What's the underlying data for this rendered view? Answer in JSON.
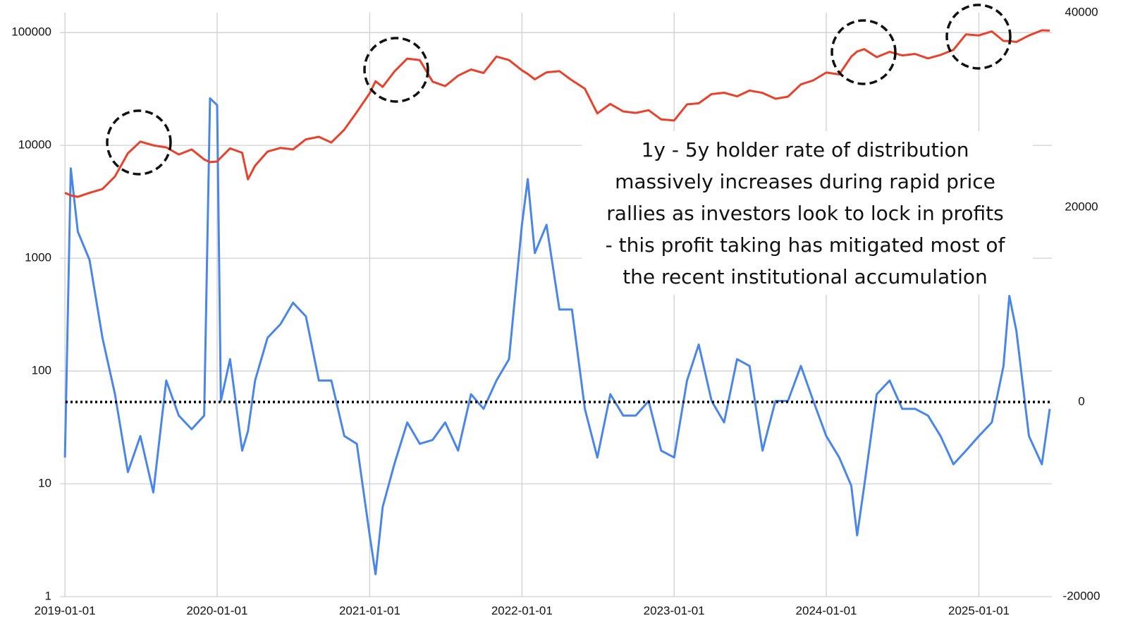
{
  "chart_data": {
    "type": "line",
    "x": [
      "2019-01-01",
      "2019-01-15",
      "2019-02-01",
      "2019-03-01",
      "2019-04-01",
      "2019-05-01",
      "2019-06-01",
      "2019-07-01",
      "2019-08-01",
      "2019-09-01",
      "2019-10-01",
      "2019-11-01",
      "2019-12-01",
      "2019-12-15",
      "2020-01-01",
      "2020-01-10",
      "2020-02-01",
      "2020-03-01",
      "2020-03-15",
      "2020-04-01",
      "2020-05-01",
      "2020-06-01",
      "2020-07-01",
      "2020-08-01",
      "2020-09-01",
      "2020-10-01",
      "2020-11-01",
      "2020-12-01",
      "2021-01-01",
      "2021-01-15",
      "2021-02-01",
      "2021-03-01",
      "2021-04-01",
      "2021-05-01",
      "2021-06-01",
      "2021-07-01",
      "2021-08-01",
      "2021-09-01",
      "2021-10-01",
      "2021-11-01",
      "2021-12-01",
      "2022-01-01",
      "2022-01-15",
      "2022-02-01",
      "2022-03-01",
      "2022-04-01",
      "2022-05-01",
      "2022-06-01",
      "2022-07-01",
      "2022-08-01",
      "2022-09-01",
      "2022-10-01",
      "2022-11-01",
      "2022-12-01",
      "2023-01-01",
      "2023-02-01",
      "2023-03-01",
      "2023-04-01",
      "2023-05-01",
      "2023-06-01",
      "2023-07-01",
      "2023-08-01",
      "2023-09-01",
      "2023-10-01",
      "2023-11-01",
      "2023-12-01",
      "2024-01-01",
      "2024-02-01",
      "2024-03-01",
      "2024-03-15",
      "2024-04-01",
      "2024-05-01",
      "2024-06-01",
      "2024-07-01",
      "2024-08-01",
      "2024-09-01",
      "2024-10-01",
      "2024-11-01",
      "2024-12-01",
      "2025-01-01",
      "2025-02-01",
      "2025-03-01",
      "2025-03-15",
      "2025-04-01",
      "2025-05-01",
      "2025-06-01",
      "2025-06-20"
    ],
    "series": [
      {
        "color": "#4a86e8",
        "axis": "y2",
        "values": [
          -5700,
          24000,
          17500,
          14600,
          6600,
          800,
          -7200,
          -3500,
          -9300,
          2200,
          -1400,
          -2800,
          -1400,
          31200,
          30500,
          100,
          4400,
          -5000,
          -3000,
          2200,
          6600,
          8000,
          10200,
          8800,
          2200,
          2200,
          -3500,
          -4300,
          -13700,
          -17700,
          -10800,
          -6400,
          -2100,
          -4300,
          -3900,
          -2100,
          -5000,
          800,
          -700,
          2200,
          4400,
          18200,
          22900,
          15300,
          18200,
          9500,
          9500,
          -700,
          -5700,
          800,
          -1400,
          -1400,
          100,
          -5000,
          -5700,
          2200,
          5900,
          100,
          -2100,
          4400,
          3700,
          -5000,
          100,
          100,
          3700,
          100,
          -3500,
          -5700,
          -8600,
          -13700,
          -8600,
          800,
          2200,
          -700,
          -700,
          -1400,
          -3500,
          -6400,
          -5000,
          -3500,
          -2100,
          3700,
          10900,
          7300,
          -3500,
          -6400,
          -700
        ]
      },
      {
        "color": "#e8412c",
        "values": [
          3800,
          3600,
          3500,
          3800,
          4100,
          5300,
          8500,
          10800,
          10000,
          9600,
          8300,
          9200,
          7500,
          7100,
          7200,
          7800,
          9400,
          8600,
          5000,
          6600,
          8800,
          9500,
          9200,
          11300,
          11900,
          10600,
          13800,
          19700,
          29000,
          37000,
          33000,
          45000,
          58800,
          57000,
          36700,
          33500,
          41500,
          47100,
          43800,
          61300,
          57000,
          46300,
          43000,
          38500,
          44400,
          45500,
          37700,
          31800,
          19200,
          23300,
          20000,
          19400,
          20500,
          17000,
          16600,
          23100,
          23600,
          28500,
          29300,
          27200,
          30600,
          29200,
          25900,
          27000,
          34700,
          37700,
          44200,
          42600,
          61200,
          68000,
          71300,
          60600,
          67500,
          62700,
          64600,
          59000,
          63300,
          70200,
          96400,
          94400,
          102400,
          84400,
          84000,
          82500,
          94200,
          104600,
          104000
        ]
      }
    ],
    "xlim": [
      "2018-12-20",
      "2025-06-25"
    ],
    "xticks": [
      "2019-01-01",
      "2020-01-01",
      "2021-01-01",
      "2022-01-01",
      "2023-01-01",
      "2024-01-01",
      "2025-01-01"
    ],
    "ylim": [
      1,
      150000
    ],
    "yscale": "log",
    "yticks": [
      1,
      10,
      100,
      1000,
      10000,
      100000
    ],
    "y2lim": [
      -20000,
      40000
    ],
    "y2ticks": [
      -20000,
      0,
      20000,
      40000
    ],
    "y2_reference_line": 0,
    "grid": true,
    "annotation": [
      "1y - 5y holder rate of distribution",
      "massively increases during rapid price",
      "rallies as investors look to lock in profits",
      "- this profit taking has mitigated most of",
      "the recent institutional accumulation"
    ]
  }
}
